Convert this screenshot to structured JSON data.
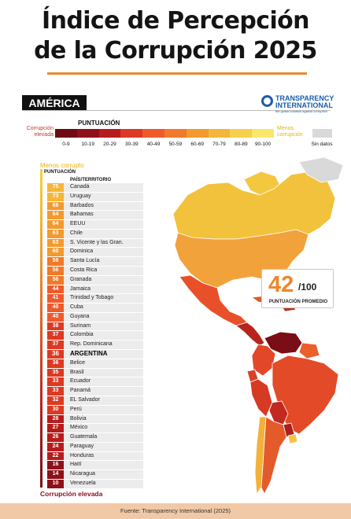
{
  "title_line1": "Índice de Percepción",
  "title_line2": "de la Corrupción 2025",
  "region": "AMÉRICA",
  "logo": {
    "line1": "TRANSPARENCY",
    "line2": "INTERNATIONAL",
    "tagline": "the global coalition against corruption"
  },
  "scale": {
    "title": "PUNTUACIÓN",
    "left_label": "Corrupción elevada",
    "right_label": "Menos corrupción",
    "no_data": "Sin datos",
    "bins": [
      "0-9",
      "10-19",
      "20-29",
      "30-39",
      "40-49",
      "50-59",
      "60-69",
      "70-79",
      "80-89",
      "90-100"
    ],
    "colors": [
      "#6e0a12",
      "#8e1018",
      "#b71c1c",
      "#dc3a22",
      "#ee5a2a",
      "#f07a2a",
      "#f39a2e",
      "#f4b63a",
      "#f6d04a",
      "#f9e66a"
    ]
  },
  "list": {
    "top_label": "Menos corrupto",
    "col_score": "PUNTUACIÓN",
    "col_country": "PAÍS/TERRITORIO",
    "bottom_label": "Corrupción elevada"
  },
  "average": {
    "value": "42",
    "denominator": "/100",
    "label": "PUNTUACIÓN PROMEDIO"
  },
  "footer": "Fuente: Transparency International (2025)",
  "chart_data": {
    "type": "bar",
    "categories": [
      "Canadá",
      "Uruguay",
      "Barbados",
      "Bahamas",
      "EEUU",
      "Chile",
      "S. Vicente y las Gran.",
      "Dominica",
      "Santa Lucía",
      "Costa Rica",
      "Granada",
      "Jamaica",
      "Trinidad y Tobago",
      "Cuba",
      "Guyana",
      "Surinam",
      "Colombia",
      "Rep. Dominicana",
      "ARGENTINA",
      "Belice",
      "Brasil",
      "Ecuador",
      "Panamá",
      "EL Salvador",
      "Perú",
      "Bolivia",
      "México",
      "Guatemala",
      "Paraguay",
      "Honduras",
      "Haití",
      "Nicaragua",
      "Venezuela"
    ],
    "values": [
      75,
      73,
      68,
      64,
      64,
      63,
      63,
      60,
      59,
      56,
      56,
      44,
      41,
      40,
      40,
      38,
      37,
      37,
      36,
      36,
      35,
      33,
      33,
      32,
      30,
      28,
      27,
      26,
      24,
      22,
      16,
      14,
      10
    ],
    "ylabel": "PUNTUACIÓN",
    "ylim": [
      0,
      100
    ],
    "highlight": "ARGENTINA"
  }
}
